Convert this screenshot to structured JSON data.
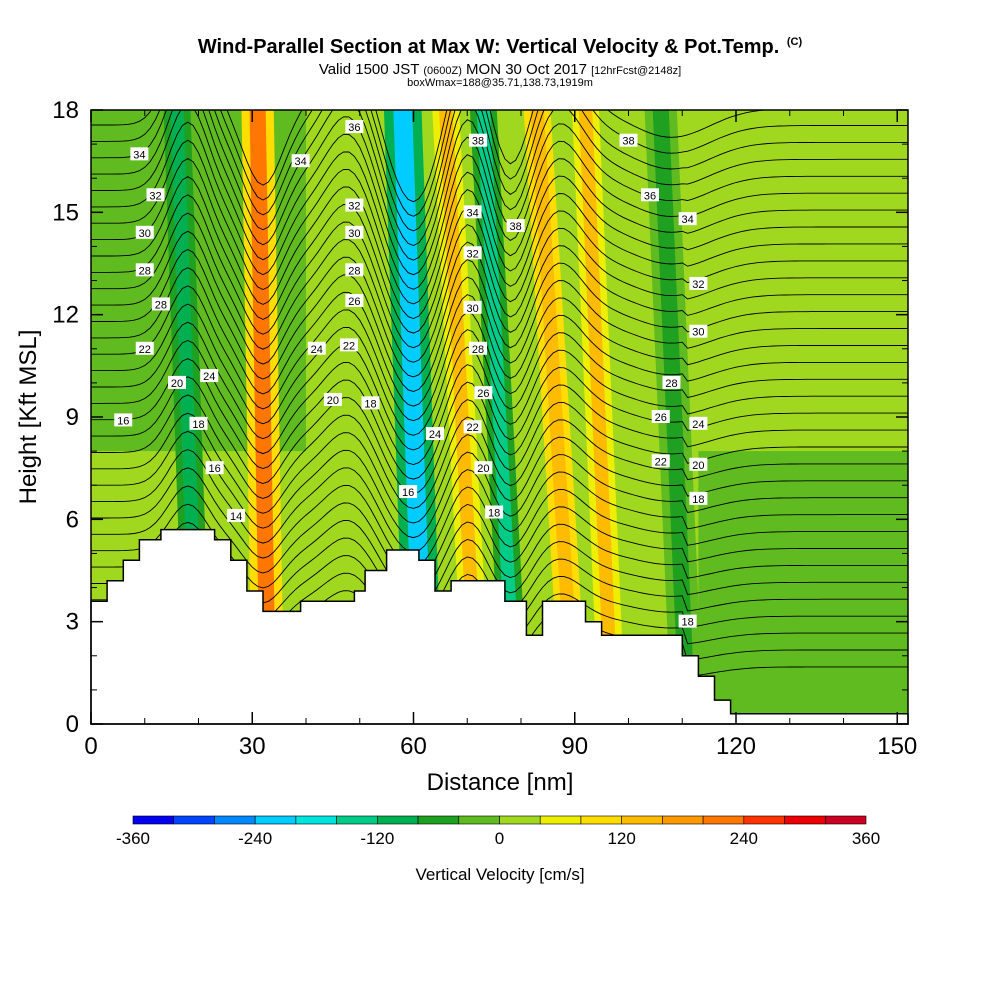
{
  "title": {
    "main": "Wind-Parallel Section at Max W: Vertical Velocity & Pot.Temp.",
    "copyright": "(C)",
    "valid_prefix": "Valid 1500 JST",
    "utc": "(0600Z)",
    "valid_date": "MON 30 Oct 2017",
    "forecast": "[12hrFcst@2148z]",
    "boxline": "boxWmax=188@35.71,138.73,1919m"
  },
  "colors": {
    "contour": "#000000",
    "terrain": "#ffffff",
    "scale": [
      "#0000ee",
      "#0044ff",
      "#0088ff",
      "#00ccff",
      "#00e5dd",
      "#00cc88",
      "#00b050",
      "#20a020",
      "#60bb20",
      "#a0d820",
      "#eeee00",
      "#ffdd00",
      "#ffbb00",
      "#ff9900",
      "#ff7700",
      "#ff3300",
      "#ee0000",
      "#cc0022",
      "#aa0044",
      "#880066",
      "#660088"
    ]
  },
  "chart_data": {
    "type": "heatmap",
    "xlabel": "Distance [nm]",
    "ylabel": "Height [Kft MSL]",
    "xlim": [
      0,
      152
    ],
    "ylim": [
      0,
      18
    ],
    "x_ticks": [
      0,
      30,
      60,
      90,
      120,
      150
    ],
    "x_tick_labels": [
      "0",
      "30",
      "60",
      "90",
      "120",
      "150"
    ],
    "y_ticks": [
      0,
      3,
      6,
      9,
      12,
      15,
      18
    ],
    "y_tick_labels": [
      "0",
      "3",
      "6",
      "9",
      "12",
      "15",
      "18"
    ],
    "colorbar": {
      "label": "Vertical Velocity [cm/s]",
      "min": -360,
      "max": 360,
      "step": 40,
      "tick_labels": [
        "-360",
        "-240",
        "-120",
        "0",
        "120",
        "240",
        "360"
      ]
    },
    "vertical_velocity_bands": [
      {
        "x_bottom": 33,
        "x_top": 31,
        "w_cms": 210,
        "width_nm": 6
      },
      {
        "x_bottom": 20,
        "x_top": 16,
        "w_cms": -100,
        "width_nm": 5
      },
      {
        "x_bottom": 62,
        "x_top": 58,
        "w_cms": -210,
        "width_nm": 7
      },
      {
        "x_bottom": 72,
        "x_top": 66,
        "w_cms": 140,
        "width_nm": 5
      },
      {
        "x_bottom": 79,
        "x_top": 73,
        "w_cms": -130,
        "width_nm": 5
      },
      {
        "x_bottom": 90,
        "x_top": 83,
        "w_cms": 150,
        "width_nm": 5
      },
      {
        "x_bottom": 97,
        "x_top": 92,
        "w_cms": 130,
        "width_nm": 5
      },
      {
        "x_bottom": 111,
        "x_top": 106,
        "w_cms": -60,
        "width_nm": 6
      }
    ],
    "terrain_height_kft": [
      {
        "x": 0,
        "h": 3.6
      },
      {
        "x": 3,
        "h": 4.2
      },
      {
        "x": 6,
        "h": 4.8
      },
      {
        "x": 9,
        "h": 5.4
      },
      {
        "x": 13,
        "h": 5.7
      },
      {
        "x": 23,
        "h": 5.4
      },
      {
        "x": 26,
        "h": 4.8
      },
      {
        "x": 29,
        "h": 3.9
      },
      {
        "x": 32,
        "h": 3.3
      },
      {
        "x": 39,
        "h": 3.6
      },
      {
        "x": 49,
        "h": 3.9
      },
      {
        "x": 51,
        "h": 4.5
      },
      {
        "x": 55,
        "h": 5.1
      },
      {
        "x": 61,
        "h": 4.8
      },
      {
        "x": 64,
        "h": 3.9
      },
      {
        "x": 67,
        "h": 4.2
      },
      {
        "x": 77,
        "h": 3.6
      },
      {
        "x": 81,
        "h": 2.6
      },
      {
        "x": 84,
        "h": 3.6
      },
      {
        "x": 92,
        "h": 3.0
      },
      {
        "x": 95,
        "h": 2.6
      },
      {
        "x": 110,
        "h": 2.0
      },
      {
        "x": 113,
        "h": 1.4
      },
      {
        "x": 116,
        "h": 0.7
      },
      {
        "x": 119,
        "h": 0.3
      },
      {
        "x": 152,
        "h": 0.3
      }
    ],
    "theta_levels": [
      14,
      16,
      18,
      20,
      22,
      24,
      26,
      28,
      30,
      32,
      34,
      36,
      38
    ],
    "theta_contour_labels": [
      {
        "text": "34",
        "x": 9,
        "y": 16.7
      },
      {
        "text": "32",
        "x": 12,
        "y": 15.5
      },
      {
        "text": "30",
        "x": 10,
        "y": 14.4
      },
      {
        "text": "28",
        "x": 10,
        "y": 13.3
      },
      {
        "text": "28",
        "x": 13,
        "y": 12.3
      },
      {
        "text": "22",
        "x": 10,
        "y": 11.0
      },
      {
        "text": "20",
        "x": 16,
        "y": 10.0
      },
      {
        "text": "16",
        "x": 6,
        "y": 8.9
      },
      {
        "text": "24",
        "x": 22,
        "y": 10.2
      },
      {
        "text": "18",
        "x": 20,
        "y": 8.8
      },
      {
        "text": "16",
        "x": 23,
        "y": 7.5
      },
      {
        "text": "14",
        "x": 27,
        "y": 6.1
      },
      {
        "text": "36",
        "x": 49,
        "y": 17.5
      },
      {
        "text": "34",
        "x": 39,
        "y": 16.5
      },
      {
        "text": "32",
        "x": 49,
        "y": 15.2
      },
      {
        "text": "30",
        "x": 49,
        "y": 14.4
      },
      {
        "text": "28",
        "x": 49,
        "y": 13.3
      },
      {
        "text": "26",
        "x": 49,
        "y": 12.4
      },
      {
        "text": "24",
        "x": 42,
        "y": 11.0
      },
      {
        "text": "22",
        "x": 48,
        "y": 11.1
      },
      {
        "text": "20",
        "x": 45,
        "y": 9.5
      },
      {
        "text": "18",
        "x": 52,
        "y": 9.4
      },
      {
        "text": "16",
        "x": 59,
        "y": 6.8
      },
      {
        "text": "38",
        "x": 72,
        "y": 17.1
      },
      {
        "text": "34",
        "x": 71,
        "y": 15.0
      },
      {
        "text": "38",
        "x": 79,
        "y": 14.6
      },
      {
        "text": "32",
        "x": 71,
        "y": 13.8
      },
      {
        "text": "30",
        "x": 71,
        "y": 12.2
      },
      {
        "text": "28",
        "x": 72,
        "y": 11.0
      },
      {
        "text": "26",
        "x": 73,
        "y": 9.7
      },
      {
        "text": "24",
        "x": 64,
        "y": 8.5
      },
      {
        "text": "22",
        "x": 71,
        "y": 8.7
      },
      {
        "text": "20",
        "x": 73,
        "y": 7.5
      },
      {
        "text": "18",
        "x": 75,
        "y": 6.2
      },
      {
        "text": "38",
        "x": 100,
        "y": 17.1
      },
      {
        "text": "36",
        "x": 104,
        "y": 15.5
      },
      {
        "text": "34",
        "x": 111,
        "y": 14.8
      },
      {
        "text": "32",
        "x": 113,
        "y": 12.9
      },
      {
        "text": "30",
        "x": 113,
        "y": 11.5
      },
      {
        "text": "28",
        "x": 108,
        "y": 10.0
      },
      {
        "text": "26",
        "x": 106,
        "y": 9.0
      },
      {
        "text": "24",
        "x": 113,
        "y": 8.8
      },
      {
        "text": "22",
        "x": 106,
        "y": 7.7
      },
      {
        "text": "20",
        "x": 113,
        "y": 7.6
      },
      {
        "text": "18",
        "x": 113,
        "y": 6.6
      },
      {
        "text": "18",
        "x": 111,
        "y": 3.0
      }
    ]
  }
}
